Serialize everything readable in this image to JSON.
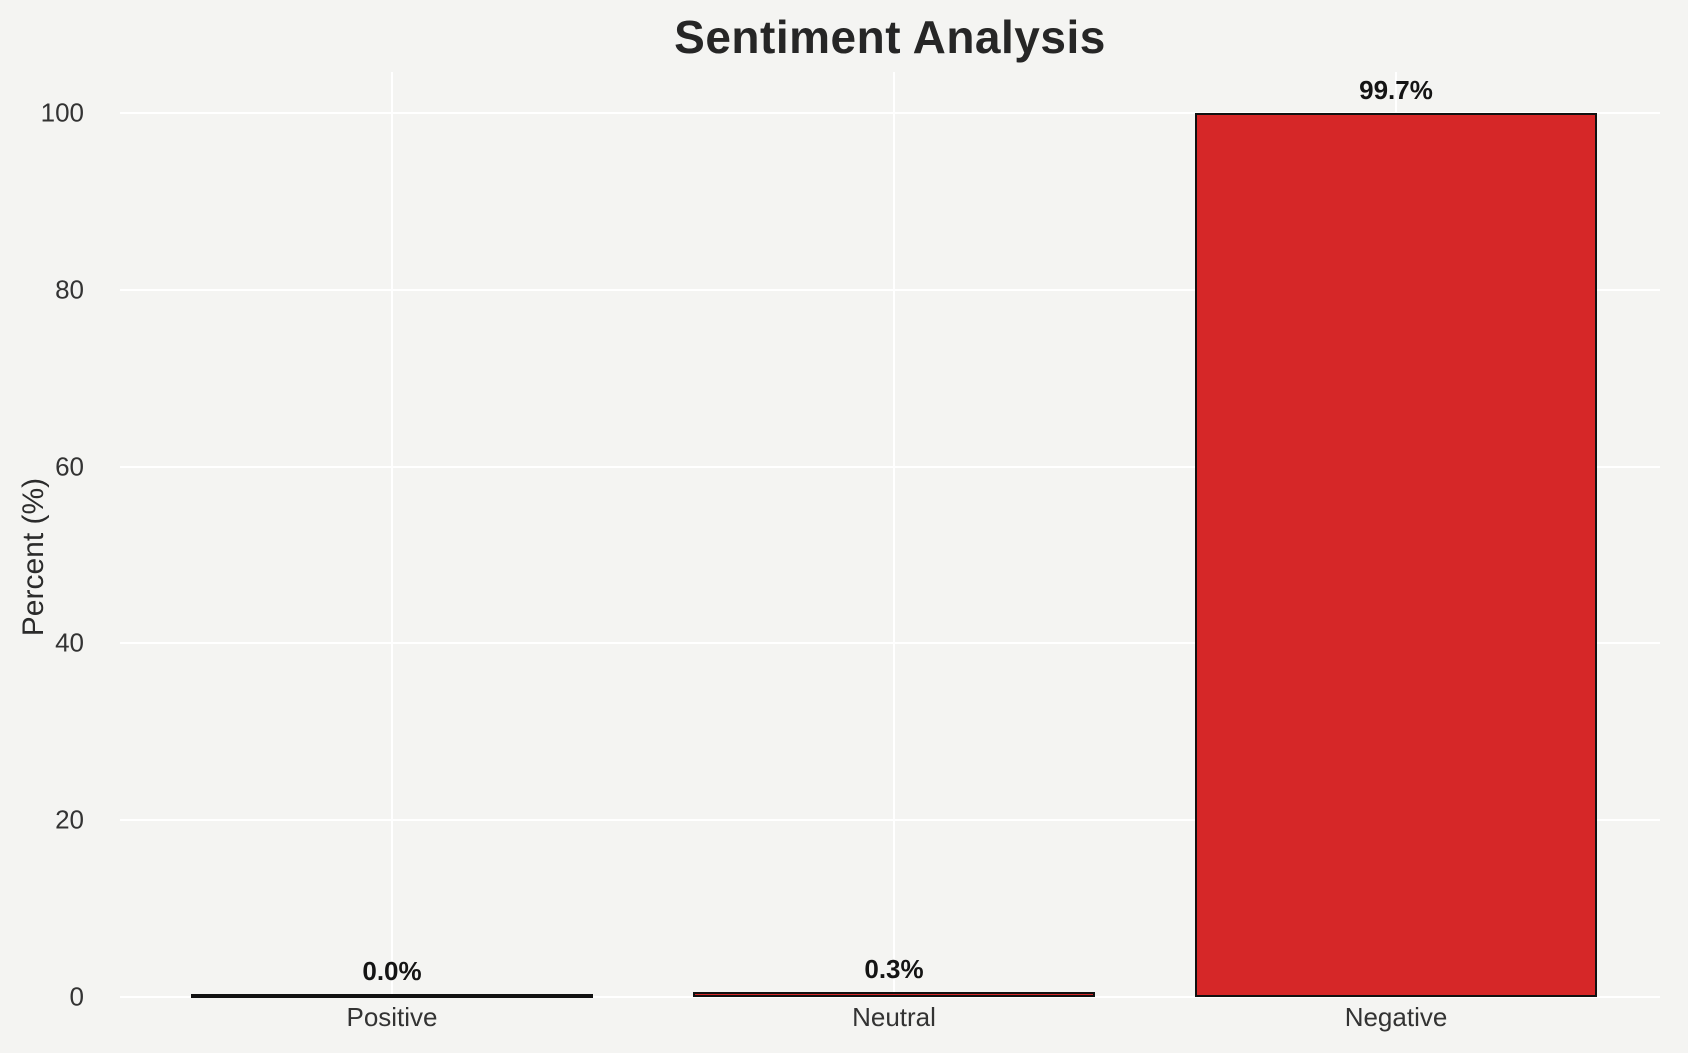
{
  "figure": {
    "title": "Sentiment Analysis",
    "background_color": "#f4f4f2",
    "gridline_color": "#ffffff",
    "title_color": "#262626",
    "tick_color": "#333333",
    "bar_edge_color": "#111111"
  },
  "chart_data": {
    "type": "bar",
    "title": "Sentiment Analysis",
    "categories": [
      "Positive",
      "Neutral",
      "Negative"
    ],
    "values": [
      0.0,
      0.3,
      99.7
    ],
    "value_labels": [
      "0.0%",
      "0.3%",
      "99.7%"
    ],
    "bar_color": "#d62728",
    "xlabel": "",
    "ylabel": "Percent (%)",
    "ylim": [
      0,
      104.7
    ],
    "yticks": [
      0,
      20,
      40,
      60,
      80,
      100
    ],
    "grid": true,
    "grid_orientation": "horizontal-and-vertical",
    "legend": false
  }
}
